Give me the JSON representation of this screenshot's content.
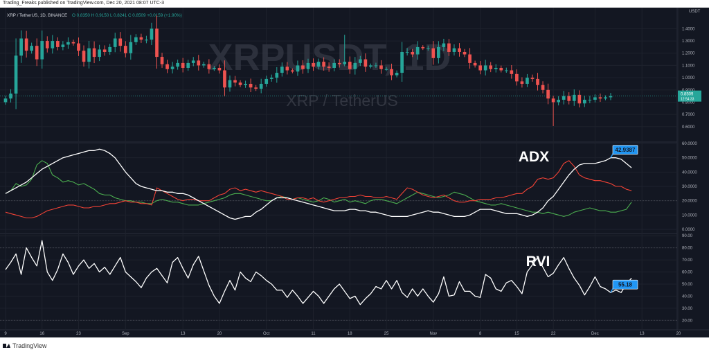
{
  "publisher_line": "Trading_Freaks published on TradingView.com, Dec 20, 2021 08:07 UTC-3",
  "footer_brand": "TradingView",
  "colors": {
    "background": "#131722",
    "up": "#26a69a",
    "down": "#ef5350",
    "grid": "#1e222d",
    "line": "#ffffff",
    "adx_green": "#4caf50",
    "adx_red": "#f44336",
    "label_bg": "#2196f3"
  },
  "chart_data": [
    {
      "type": "candlestick",
      "header": {
        "symbol": "XRP / TetherUS, 1D, BINANCE",
        "ohlc_label": "O 0.8350 H 0.9150 L 0.8241 C 0.8509 +0.0159 (+1.90%)"
      },
      "watermark_big": "XRPUSDT, 1D",
      "watermark_small": "XRP / TetherUS",
      "currency": "USDT",
      "yticks": [
        "1.4000",
        "1.3000",
        "1.2000",
        "1.1000",
        "1.0000",
        "0.9000",
        "0.8000",
        "0.7000",
        "0.6000"
      ],
      "ylim": [
        0.52,
        1.47
      ],
      "last_price": "0.8509",
      "countdown": "12:54:33",
      "xticks": [
        "9",
        "16",
        "23",
        "Sep",
        "13",
        "20",
        "Oct",
        "11",
        "18",
        "25",
        "Nov",
        "8",
        "15",
        "22",
        "Dec",
        "13",
        "20",
        "2022"
      ],
      "close": [
        0.83,
        0.87,
        1.18,
        1.32,
        1.22,
        1.26,
        1.15,
        1.3,
        1.24,
        1.3,
        1.25,
        1.27,
        1.29,
        1.28,
        1.22,
        1.13,
        1.24,
        1.17,
        1.23,
        1.21,
        1.25,
        1.32,
        1.26,
        1.2,
        1.29,
        1.33,
        1.31,
        1.31,
        1.4,
        1.17,
        1.11,
        1.07,
        1.09,
        1.12,
        1.08,
        1.12,
        1.14,
        1.1,
        1.11,
        1.07,
        1.08,
        1.06,
        0.92,
        0.98,
        0.96,
        0.94,
        0.95,
        0.92,
        0.91,
        0.95,
        0.99,
        1.0,
        1.04,
        1.09,
        1.06,
        1.05,
        1.1,
        1.07,
        1.12,
        1.09,
        1.13,
        1.09,
        1.08,
        1.12,
        1.11,
        1.13,
        1.07,
        1.12,
        1.15,
        1.09,
        1.1,
        1.1,
        1.07,
        1.07,
        1.02,
        1.04,
        1.21,
        1.21,
        1.19,
        1.25,
        1.24,
        1.24,
        1.16,
        1.25,
        1.28,
        1.21,
        1.24,
        1.21,
        1.19,
        1.12,
        1.1,
        1.06,
        1.1,
        1.07,
        1.08,
        1.06,
        1.06,
        1.03,
        0.97,
        0.95,
        1.0,
        0.99,
        0.94,
        0.9,
        0.83,
        0.8,
        0.82,
        0.85,
        0.81,
        0.86,
        0.79,
        0.82,
        0.82,
        0.84,
        0.83,
        0.84,
        0.85
      ]
    },
    {
      "type": "line",
      "label": "ADX",
      "yticks": [
        "60.0000",
        "50.0000",
        "40.0000",
        "30.0000",
        "20.0000",
        "10.0000",
        "0.0000"
      ],
      "ylim": [
        0,
        60
      ],
      "last_value": "42.9387",
      "series": [
        {
          "values": [
            25,
            27,
            29,
            31,
            33,
            36,
            39,
            42,
            44,
            46,
            48,
            50,
            51,
            52,
            53,
            54,
            55,
            55,
            56,
            55,
            53,
            50,
            45,
            40,
            36,
            32,
            30,
            29,
            28,
            27,
            27,
            26,
            26,
            25,
            25,
            24,
            22,
            20,
            18,
            16,
            14,
            12,
            10,
            8,
            7,
            8,
            9,
            9,
            12,
            14,
            17,
            20,
            22,
            22,
            22,
            21,
            20,
            19,
            18,
            17,
            16,
            15,
            14,
            13,
            13,
            13,
            14,
            14,
            13,
            13,
            12,
            12,
            11,
            10,
            9,
            9,
            9,
            9,
            10,
            11,
            12,
            13,
            12,
            12,
            11,
            10,
            9,
            9,
            9,
            10,
            12,
            14,
            14,
            14,
            13,
            12,
            11,
            11,
            11,
            10,
            9,
            10,
            12,
            15,
            20,
            23,
            28,
            33,
            38,
            42,
            45,
            46,
            46,
            46,
            47,
            48,
            50,
            50,
            49,
            46,
            43
          ]
        },
        {
          "values": [
            25,
            27,
            32,
            30,
            31,
            35,
            45,
            48,
            46,
            38,
            36,
            33,
            34,
            33,
            31,
            32,
            30,
            28,
            25,
            24,
            24,
            22,
            21,
            20,
            20,
            19,
            19,
            18,
            18,
            20,
            21,
            20,
            19,
            19,
            18,
            17,
            17,
            17,
            18,
            19,
            20,
            21,
            22,
            24,
            25,
            25,
            24,
            23,
            22,
            21,
            20,
            20,
            22,
            23,
            22,
            21,
            22,
            21,
            20,
            19,
            20,
            22,
            21,
            19,
            20,
            21,
            19,
            20,
            19,
            18,
            20,
            21,
            21,
            20,
            19,
            18,
            20,
            22,
            24,
            26,
            25,
            24,
            23,
            22,
            23,
            24,
            26,
            25,
            24,
            22,
            20,
            19,
            18,
            17,
            17,
            18,
            17,
            16,
            15,
            14,
            13,
            12,
            12,
            11,
            12,
            11,
            10,
            9,
            10,
            12,
            13,
            14,
            15,
            14,
            13,
            13,
            12,
            12,
            13,
            14,
            19
          ]
        },
        {
          "values": [
            12,
            11,
            10,
            9,
            8,
            8,
            9,
            11,
            13,
            14,
            15,
            16,
            17,
            17,
            16,
            15,
            15,
            16,
            16,
            17,
            18,
            18,
            19,
            20,
            19,
            19,
            18,
            18,
            17,
            29,
            27,
            25,
            23,
            21,
            20,
            21,
            21,
            20,
            20,
            20,
            22,
            24,
            25,
            28,
            29,
            27,
            28,
            27,
            26,
            27,
            26,
            25,
            24,
            23,
            21,
            21,
            22,
            22,
            21,
            22,
            20,
            19,
            20,
            21,
            22,
            22,
            23,
            23,
            24,
            23,
            23,
            22,
            22,
            23,
            22,
            21,
            25,
            29,
            28,
            26,
            24,
            23,
            22,
            23,
            24,
            22,
            20,
            19,
            19,
            20,
            20,
            21,
            21,
            21,
            22,
            22,
            23,
            24,
            25,
            25,
            28,
            30,
            35,
            36,
            35,
            36,
            40,
            46,
            48,
            44,
            38,
            36,
            35,
            34,
            34,
            33,
            32,
            30,
            30,
            28,
            27
          ]
        }
      ]
    },
    {
      "type": "line",
      "label": "RVI",
      "yticks": [
        "90.00",
        "80.00",
        "70.00",
        "60.00",
        "50.00",
        "40.00",
        "30.00",
        "20.00"
      ],
      "ylim": [
        15,
        93
      ],
      "last_value": "55.18",
      "series": [
        {
          "values": [
            62,
            68,
            75,
            58,
            80,
            72,
            65,
            86,
            60,
            53,
            62,
            75,
            68,
            58,
            65,
            70,
            63,
            67,
            60,
            64,
            58,
            65,
            72,
            60,
            56,
            52,
            47,
            55,
            60,
            63,
            57,
            51,
            68,
            72,
            63,
            55,
            66,
            73,
            61,
            49,
            40,
            34,
            44,
            53,
            45,
            60,
            55,
            52,
            60,
            57,
            53,
            50,
            45,
            45,
            39,
            45,
            40,
            34,
            39,
            44,
            40,
            34,
            40,
            46,
            50,
            44,
            38,
            40,
            33,
            38,
            42,
            48,
            46,
            53,
            46,
            53,
            43,
            39,
            46,
            40,
            46,
            40,
            35,
            42,
            56,
            40,
            41,
            52,
            44,
            44,
            40,
            39,
            58,
            55,
            46,
            44,
            51,
            53,
            48,
            42,
            60,
            66,
            72,
            64,
            56,
            59,
            66,
            72,
            63,
            55,
            49,
            41,
            48,
            56,
            48,
            46,
            43,
            45,
            43,
            50,
            55
          ]
        }
      ]
    }
  ]
}
